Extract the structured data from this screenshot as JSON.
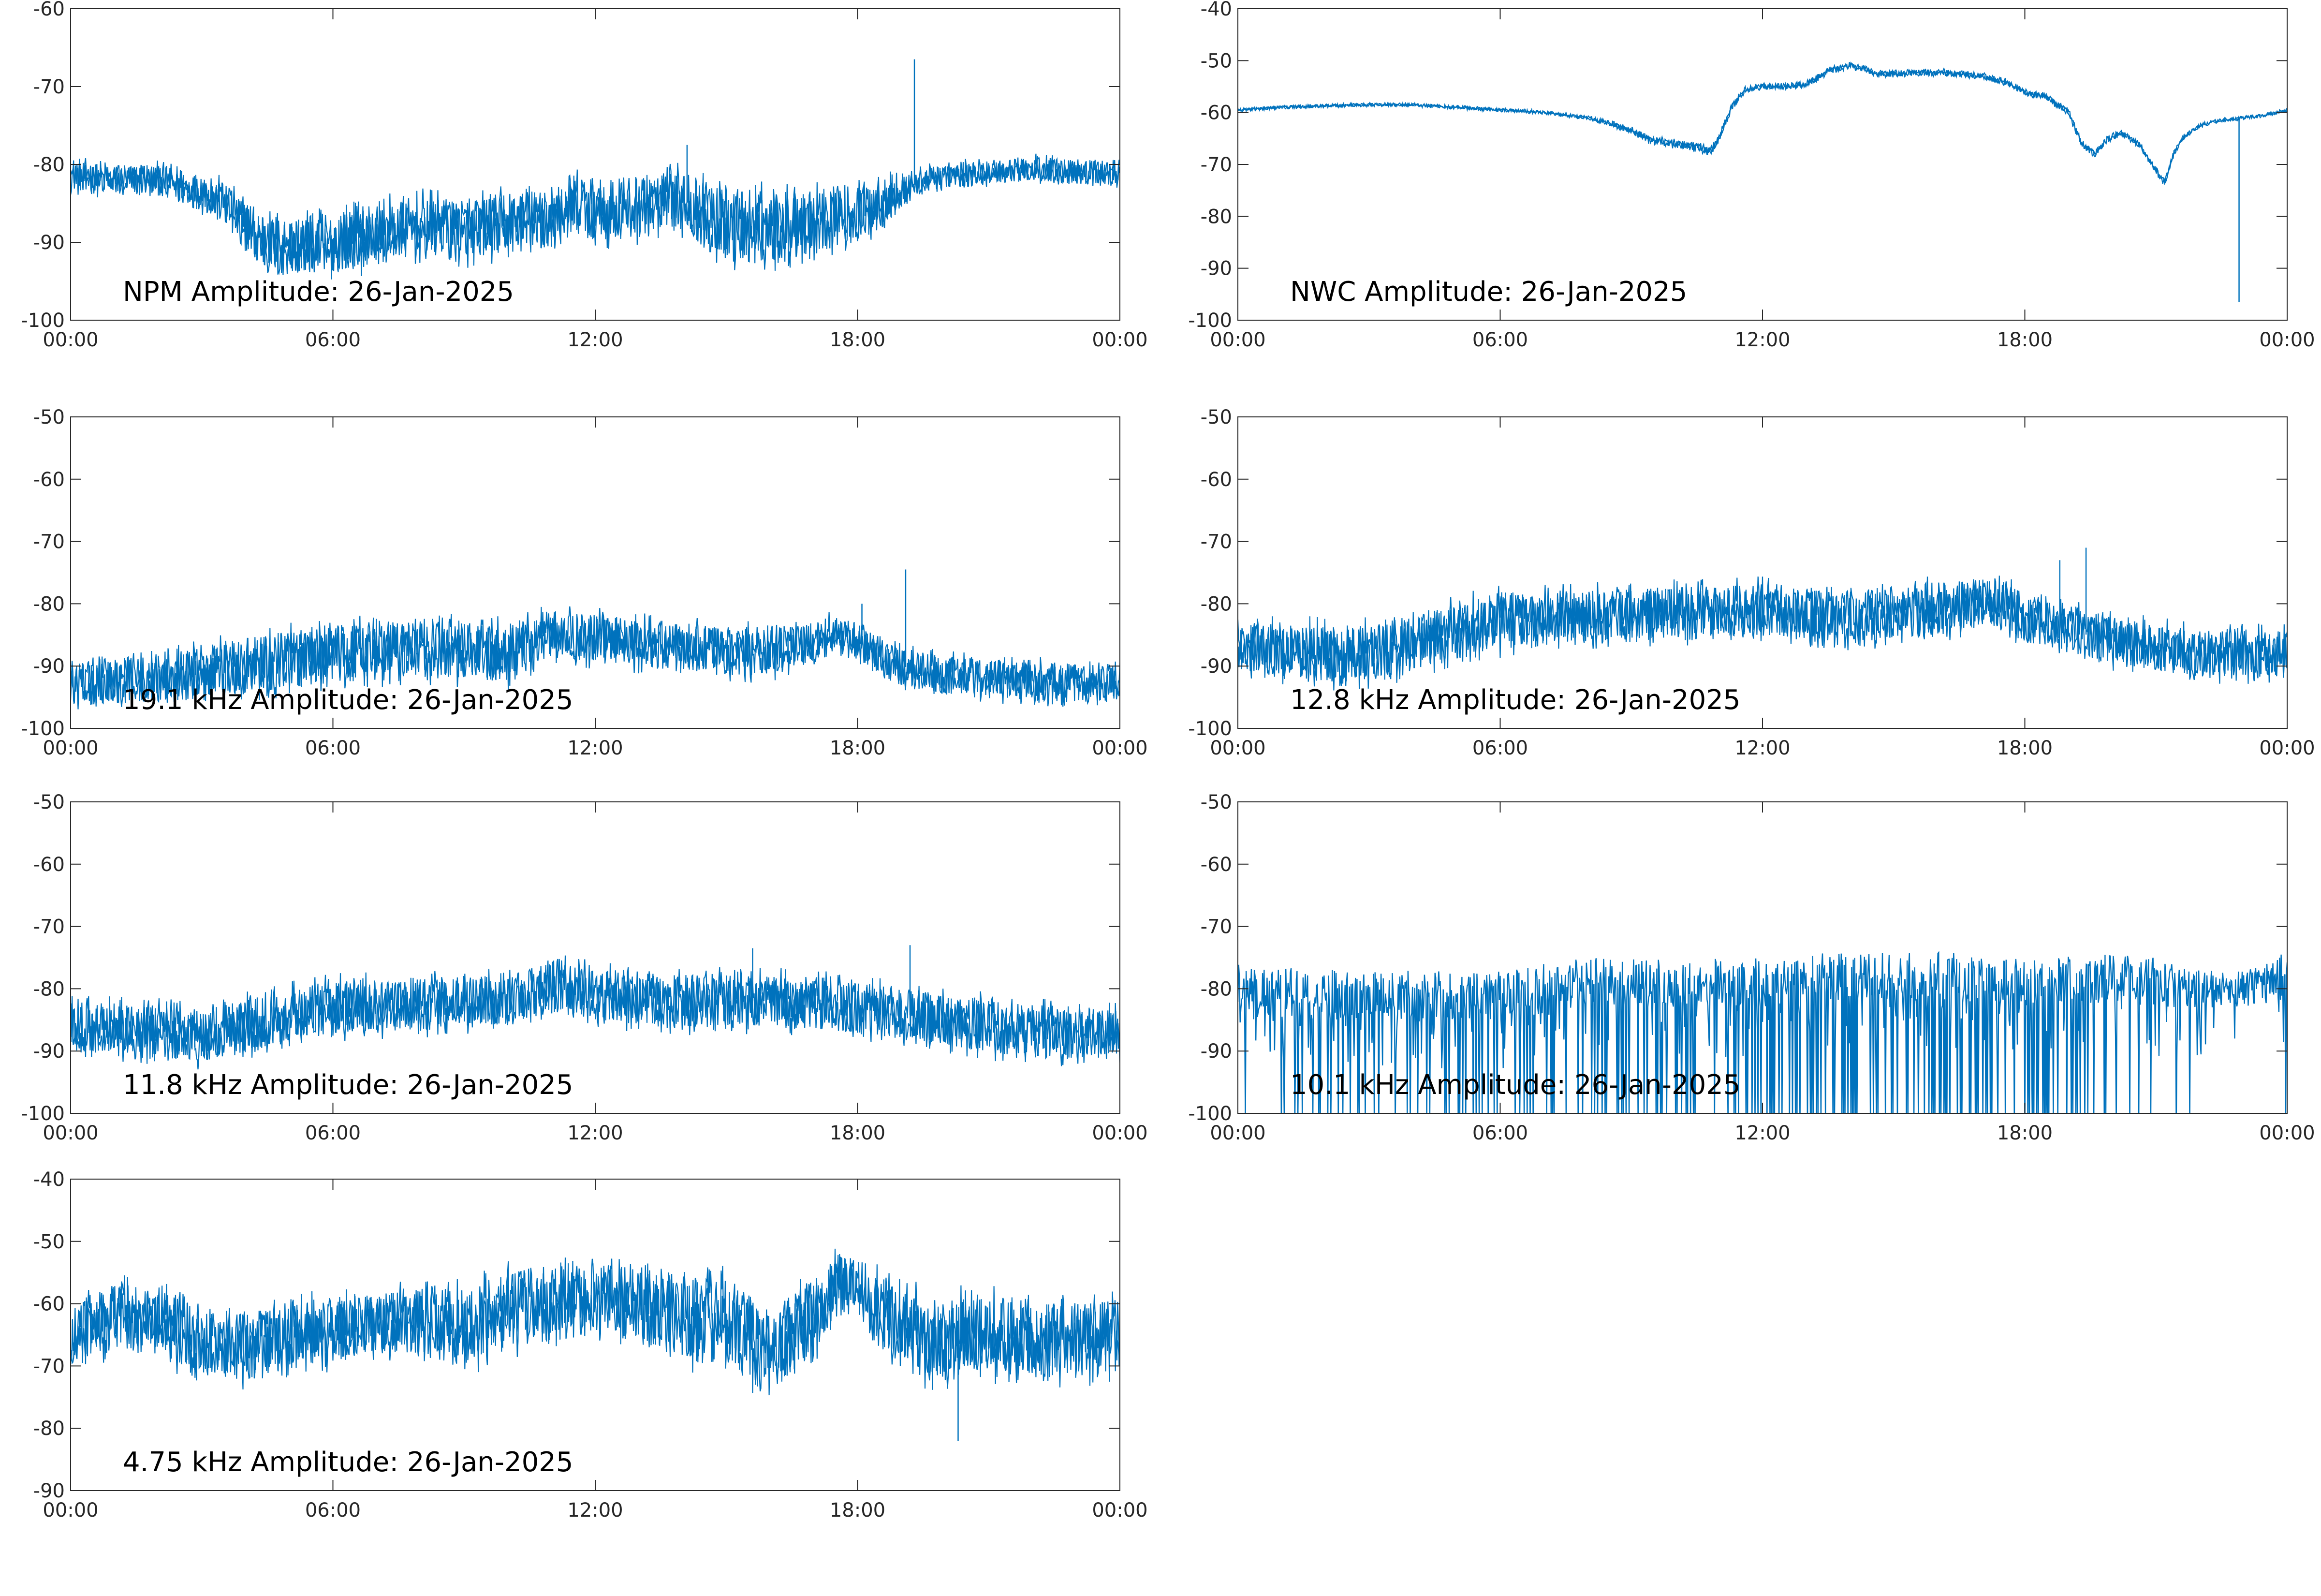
{
  "figure": {
    "background": "#ffffff",
    "line_color": "#0072bd",
    "axis_color": "#262626"
  },
  "x_tick_labels": [
    "00:00",
    "06:00",
    "12:00",
    "18:00",
    "00:00"
  ],
  "chart_data": [
    {
      "id": "npm",
      "type": "line",
      "title": "NPM Amplitude: 26-Jan-2025",
      "xlabel": "",
      "ylabel": "",
      "x_range_hours": [
        0,
        24
      ],
      "ylim": [
        -100,
        -60
      ],
      "yticks": [
        -100,
        -90,
        -80,
        -70,
        -60
      ],
      "grid": false,
      "series": [
        {
          "x_hours": [
            0,
            1,
            2,
            3,
            3.5,
            4,
            4.5,
            5,
            6,
            7,
            8,
            9,
            10,
            11,
            11.5,
            12,
            13,
            14,
            14.5,
            15,
            16,
            17,
            17.5,
            18,
            18.5,
            19,
            19.5,
            20,
            21,
            22,
            23,
            24
          ],
          "mean": [
            -81.5,
            -82,
            -82,
            -83.5,
            -85,
            -88,
            -90.5,
            -90.5,
            -90,
            -89,
            -88,
            -88.5,
            -87.5,
            -87,
            -85,
            -86,
            -85.5,
            -84.5,
            -86.5,
            -88,
            -88,
            -87.5,
            -86.5,
            -86.5,
            -85,
            -83.5,
            -82,
            -81.5,
            -81,
            -80.5,
            -81,
            -81
          ],
          "spread": [
            2.5,
            2.5,
            2.5,
            3,
            3.5,
            4,
            5,
            5,
            5,
            5,
            5,
            5,
            5,
            5,
            5,
            5,
            5,
            5,
            5.5,
            6,
            6,
            5.5,
            5,
            5,
            4.5,
            2.5,
            2,
            2,
            2,
            2,
            2,
            2
          ],
          "spikes": [
            {
              "x_hours": 19.3,
              "y": -66.5
            },
            {
              "x_hours": 14.1,
              "y": -77.5
            }
          ]
        }
      ]
    },
    {
      "id": "nwc",
      "type": "line",
      "title": "NWC Amplitude: 26-Jan-2025",
      "xlabel": "",
      "ylabel": "",
      "x_range_hours": [
        0,
        24
      ],
      "ylim": [
        -100,
        -40
      ],
      "yticks": [
        -100,
        -90,
        -80,
        -70,
        -60,
        -50,
        -40
      ],
      "grid": false,
      "series": [
        {
          "x_hours": [
            0,
            1,
            2,
            3,
            4,
            5,
            6,
            7,
            8,
            8.5,
            9,
            9.5,
            10,
            10.5,
            10.8,
            11,
            11.3,
            11.6,
            12,
            12.5,
            13,
            13.5,
            14,
            14.3,
            14.6,
            15,
            16,
            17,
            17.5,
            18,
            18.5,
            19,
            19.3,
            19.6,
            19.9,
            20.2,
            20.6,
            20.9,
            21.2,
            21.4,
            21.6,
            22,
            22.5,
            23,
            23.5,
            24
          ],
          "mean": [
            -59.5,
            -59,
            -58.7,
            -58.5,
            -58.5,
            -59,
            -59.5,
            -60,
            -61,
            -62,
            -63.5,
            -65.5,
            -66,
            -66.5,
            -67.5,
            -65,
            -59,
            -55.5,
            -55,
            -55,
            -54.5,
            -52,
            -51,
            -51.5,
            -52.5,
            -52.5,
            -52.2,
            -53,
            -54,
            -56,
            -57,
            -60,
            -66,
            -68,
            -65,
            -64,
            -66,
            -70,
            -73.5,
            -68,
            -65,
            -62.5,
            -61.5,
            -61,
            -60.5,
            -59.5
          ],
          "spread": [
            0.4,
            0.4,
            0.4,
            0.4,
            0.4,
            0.4,
            0.4,
            0.4,
            0.5,
            0.6,
            0.8,
            1,
            1,
            1.2,
            1.2,
            1,
            0.8,
            0.8,
            0.8,
            0.8,
            0.8,
            0.8,
            0.8,
            0.8,
            0.8,
            0.8,
            0.8,
            0.8,
            0.8,
            0.8,
            0.8,
            0.8,
            0.8,
            0.8,
            0.8,
            0.8,
            0.8,
            0.8,
            0.8,
            0.8,
            0.6,
            0.5,
            0.4,
            0.4,
            0.4,
            0.4
          ],
          "spikes": [
            {
              "x_hours": 22.9,
              "y": -96.5
            }
          ]
        }
      ]
    },
    {
      "id": "f19_1",
      "type": "line",
      "title": "19.1 kHz Amplitude: 26-Jan-2025",
      "xlabel": "",
      "ylabel": "",
      "x_range_hours": [
        0,
        24
      ],
      "ylim": [
        -100,
        -50
      ],
      "yticks": [
        -100,
        -90,
        -80,
        -70,
        -60,
        -50
      ],
      "grid": false,
      "series": [
        {
          "x_hours": [
            0,
            2,
            4,
            6,
            8,
            10,
            11,
            12,
            14,
            16,
            17,
            17.5,
            18,
            19,
            20,
            22,
            24
          ],
          "mean": [
            -93,
            -92,
            -90,
            -88,
            -87,
            -88,
            -85,
            -85.5,
            -87,
            -88,
            -86,
            -84.5,
            -86,
            -90,
            -91.5,
            -92.5,
            -93
          ],
          "spread": [
            4.5,
            5,
            6,
            6,
            6,
            6,
            5,
            5,
            5,
            5,
            4,
            3.5,
            4,
            4,
            4,
            4,
            4
          ],
          "spikes": [
            {
              "x_hours": 19.1,
              "y": -74.5
            },
            {
              "x_hours": 18.1,
              "y": -80
            }
          ]
        }
      ]
    },
    {
      "id": "f12_8",
      "type": "line",
      "title": "12.8 kHz Amplitude: 26-Jan-2025",
      "xlabel": "",
      "ylabel": "",
      "x_range_hours": [
        0,
        24
      ],
      "ylim": [
        -100,
        -50
      ],
      "yticks": [
        -100,
        -90,
        -80,
        -70,
        -60,
        -50
      ],
      "grid": false,
      "series": [
        {
          "x_hours": [
            0,
            2,
            3,
            4,
            6,
            8,
            10,
            12,
            14,
            16,
            17,
            17.5,
            18,
            20,
            22,
            24
          ],
          "mean": [
            -87,
            -88,
            -88,
            -86,
            -83,
            -82,
            -81.5,
            -81,
            -82,
            -81,
            -79.5,
            -80,
            -82.5,
            -86,
            -88,
            -88
          ],
          "spread": [
            5,
            6,
            6,
            6,
            6,
            5.5,
            5.5,
            5.5,
            5.5,
            5.5,
            5,
            5,
            5,
            5,
            5,
            5
          ],
          "spikes": [
            {
              "x_hours": 19.4,
              "y": -71
            },
            {
              "x_hours": 18.8,
              "y": -73
            }
          ]
        }
      ]
    },
    {
      "id": "f11_8",
      "type": "line",
      "title": "11.8 kHz Amplitude: 26-Jan-2025",
      "xlabel": "",
      "ylabel": "",
      "x_range_hours": [
        0,
        24
      ],
      "ylim": [
        -100,
        -50
      ],
      "yticks": [
        -100,
        -90,
        -80,
        -70,
        -60,
        -50
      ],
      "grid": false,
      "series": [
        {
          "x_hours": [
            0,
            2,
            3,
            4,
            5,
            6,
            8,
            10,
            11,
            12,
            14,
            16,
            17,
            18,
            20,
            22,
            24
          ],
          "mean": [
            -86,
            -87,
            -87.5,
            -86,
            -84,
            -83,
            -82.5,
            -81.5,
            -79.5,
            -81,
            -82,
            -82,
            -82.5,
            -83,
            -85,
            -87,
            -87
          ],
          "spread": [
            5,
            5.5,
            5.5,
            5.5,
            5.5,
            5.5,
            5.5,
            5.5,
            5.5,
            5.5,
            5.5,
            5.5,
            5.5,
            5.5,
            5.5,
            5.5,
            5.5
          ],
          "spikes": [
            {
              "x_hours": 19.2,
              "y": -73
            },
            {
              "x_hours": 15.6,
              "y": -73.5
            }
          ]
        }
      ]
    },
    {
      "id": "f10_1",
      "type": "line",
      "title": "10.1 kHz Amplitude: 26-Jan-2025",
      "xlabel": "",
      "ylabel": "",
      "x_range_hours": [
        0,
        24
      ],
      "ylim": [
        -100,
        -50
      ],
      "yticks": [
        -100,
        -90,
        -80,
        -70,
        -60,
        -50
      ],
      "grid": false,
      "series": [
        {
          "x_hours": [
            0,
            2,
            4,
            6,
            8,
            10,
            12,
            14,
            16,
            18,
            20,
            21,
            22,
            23,
            24
          ],
          "mean": [
            -80,
            -81,
            -81,
            -81,
            -79,
            -79,
            -79,
            -78,
            -78,
            -79,
            -78.5,
            -79,
            -80,
            -80,
            -78
          ],
          "spread": [
            4,
            4,
            4,
            4,
            4,
            4,
            4,
            4,
            4,
            4,
            4,
            4,
            3,
            3,
            4
          ],
          "drop_rate": [
            0.35,
            0.4,
            0.45,
            0.5,
            0.65,
            0.65,
            0.7,
            0.75,
            0.75,
            0.7,
            0.55,
            0.2,
            0.0,
            0.0,
            0.3
          ],
          "upper_limit": -63
        }
      ]
    },
    {
      "id": "f4_75",
      "type": "line",
      "title": "4.75 kHz Amplitude: 26-Jan-2025",
      "xlabel": "",
      "ylabel": "",
      "x_range_hours": [
        0,
        24
      ],
      "ylim": [
        -90,
        -40
      ],
      "yticks": [
        -90,
        -80,
        -70,
        -60,
        -50,
        -40
      ],
      "grid": false,
      "series": [
        {
          "x_hours": [
            0,
            1,
            2,
            3,
            4,
            5,
            6,
            7,
            8,
            9,
            10,
            11,
            12,
            13,
            14,
            15,
            16,
            17,
            17.5,
            18,
            19,
            20,
            21,
            22,
            23,
            24
          ],
          "mean": [
            -65,
            -62,
            -63,
            -66,
            -67,
            -65,
            -64,
            -63,
            -63,
            -64,
            -61,
            -60,
            -59,
            -60,
            -62,
            -63,
            -68,
            -62,
            -57,
            -57,
            -64,
            -66,
            -65,
            -65,
            -66,
            -65
          ],
          "spread": [
            6,
            7,
            7,
            7,
            7,
            7,
            7,
            6,
            7,
            8,
            8,
            8,
            7,
            8,
            9,
            9,
            9,
            8,
            6,
            6,
            8,
            9,
            8,
            8,
            8,
            8
          ],
          "spikes": [
            {
              "x_hours": 20.3,
              "y": -82
            }
          ]
        }
      ]
    }
  ]
}
